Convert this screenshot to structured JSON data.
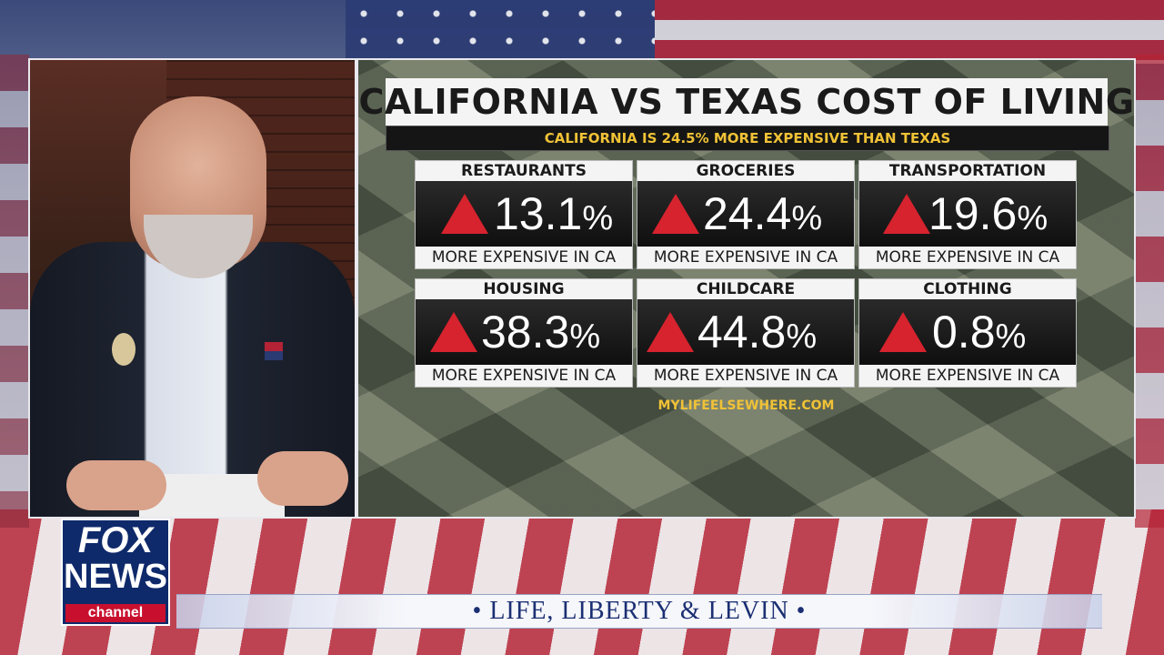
{
  "show": {
    "title": "• LIFE, LIBERTY & LEVIN •"
  },
  "network": {
    "logo_line1": "FOX",
    "logo_line2": "NEWS",
    "logo_line3": "channel"
  },
  "graphic": {
    "title": "CALIFORNIA VS TEXAS COST OF LIVING",
    "subtitle": "CALIFORNIA IS 24.5% MORE EXPENSIVE THAN TEXAS",
    "source": "MYLIFEELSEWHERE.COM",
    "footer_text": "MORE EXPENSIVE IN CA",
    "indicator_color": "#d6232e",
    "accent_color": "#f0c236",
    "items": [
      {
        "label": "RESTAURANTS",
        "value": "13.1",
        "unit": "%"
      },
      {
        "label": "GROCERIES",
        "value": "24.4",
        "unit": "%"
      },
      {
        "label": "TRANSPORTATION",
        "value": "19.6",
        "unit": "%"
      },
      {
        "label": "HOUSING",
        "value": "38.3",
        "unit": "%"
      },
      {
        "label": "CHILDCARE",
        "value": "44.8",
        "unit": "%"
      },
      {
        "label": "CLOTHING",
        "value": "0.8",
        "unit": "%"
      }
    ]
  }
}
